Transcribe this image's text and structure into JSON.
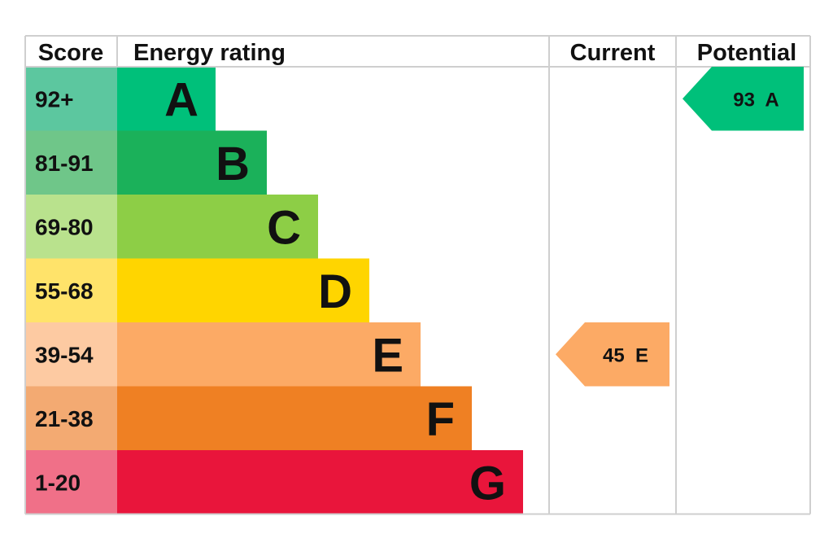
{
  "chart_data": {
    "type": "table",
    "headers": {
      "score": "Score",
      "energy_rating": "Energy rating",
      "current": "Current",
      "potential": "Potential"
    },
    "bands": [
      {
        "letter": "A",
        "range": "92+",
        "color": "#00c07a",
        "score_color": "#5cc79f"
      },
      {
        "letter": "B",
        "range": "81-91",
        "color": "#1bb15a",
        "score_color": "#6fc689"
      },
      {
        "letter": "C",
        "range": "69-80",
        "color": "#8dce46",
        "score_color": "#b9e28d"
      },
      {
        "letter": "D",
        "range": "55-68",
        "color": "#ffd500",
        "score_color": "#ffe36a"
      },
      {
        "letter": "E",
        "range": "39-54",
        "color": "#fcaa65",
        "score_color": "#fdcaa2"
      },
      {
        "letter": "F",
        "range": "21-38",
        "color": "#ef8023",
        "score_color": "#f3aa72"
      },
      {
        "letter": "G",
        "range": "1-20",
        "color": "#e9153b",
        "score_color": "#f07088"
      }
    ],
    "current": {
      "value": 45,
      "letter": "E",
      "label": "45  E",
      "color": "#fcaa65"
    },
    "potential": {
      "value": 93,
      "letter": "A",
      "label": "93  A",
      "color": "#00c07a"
    }
  }
}
